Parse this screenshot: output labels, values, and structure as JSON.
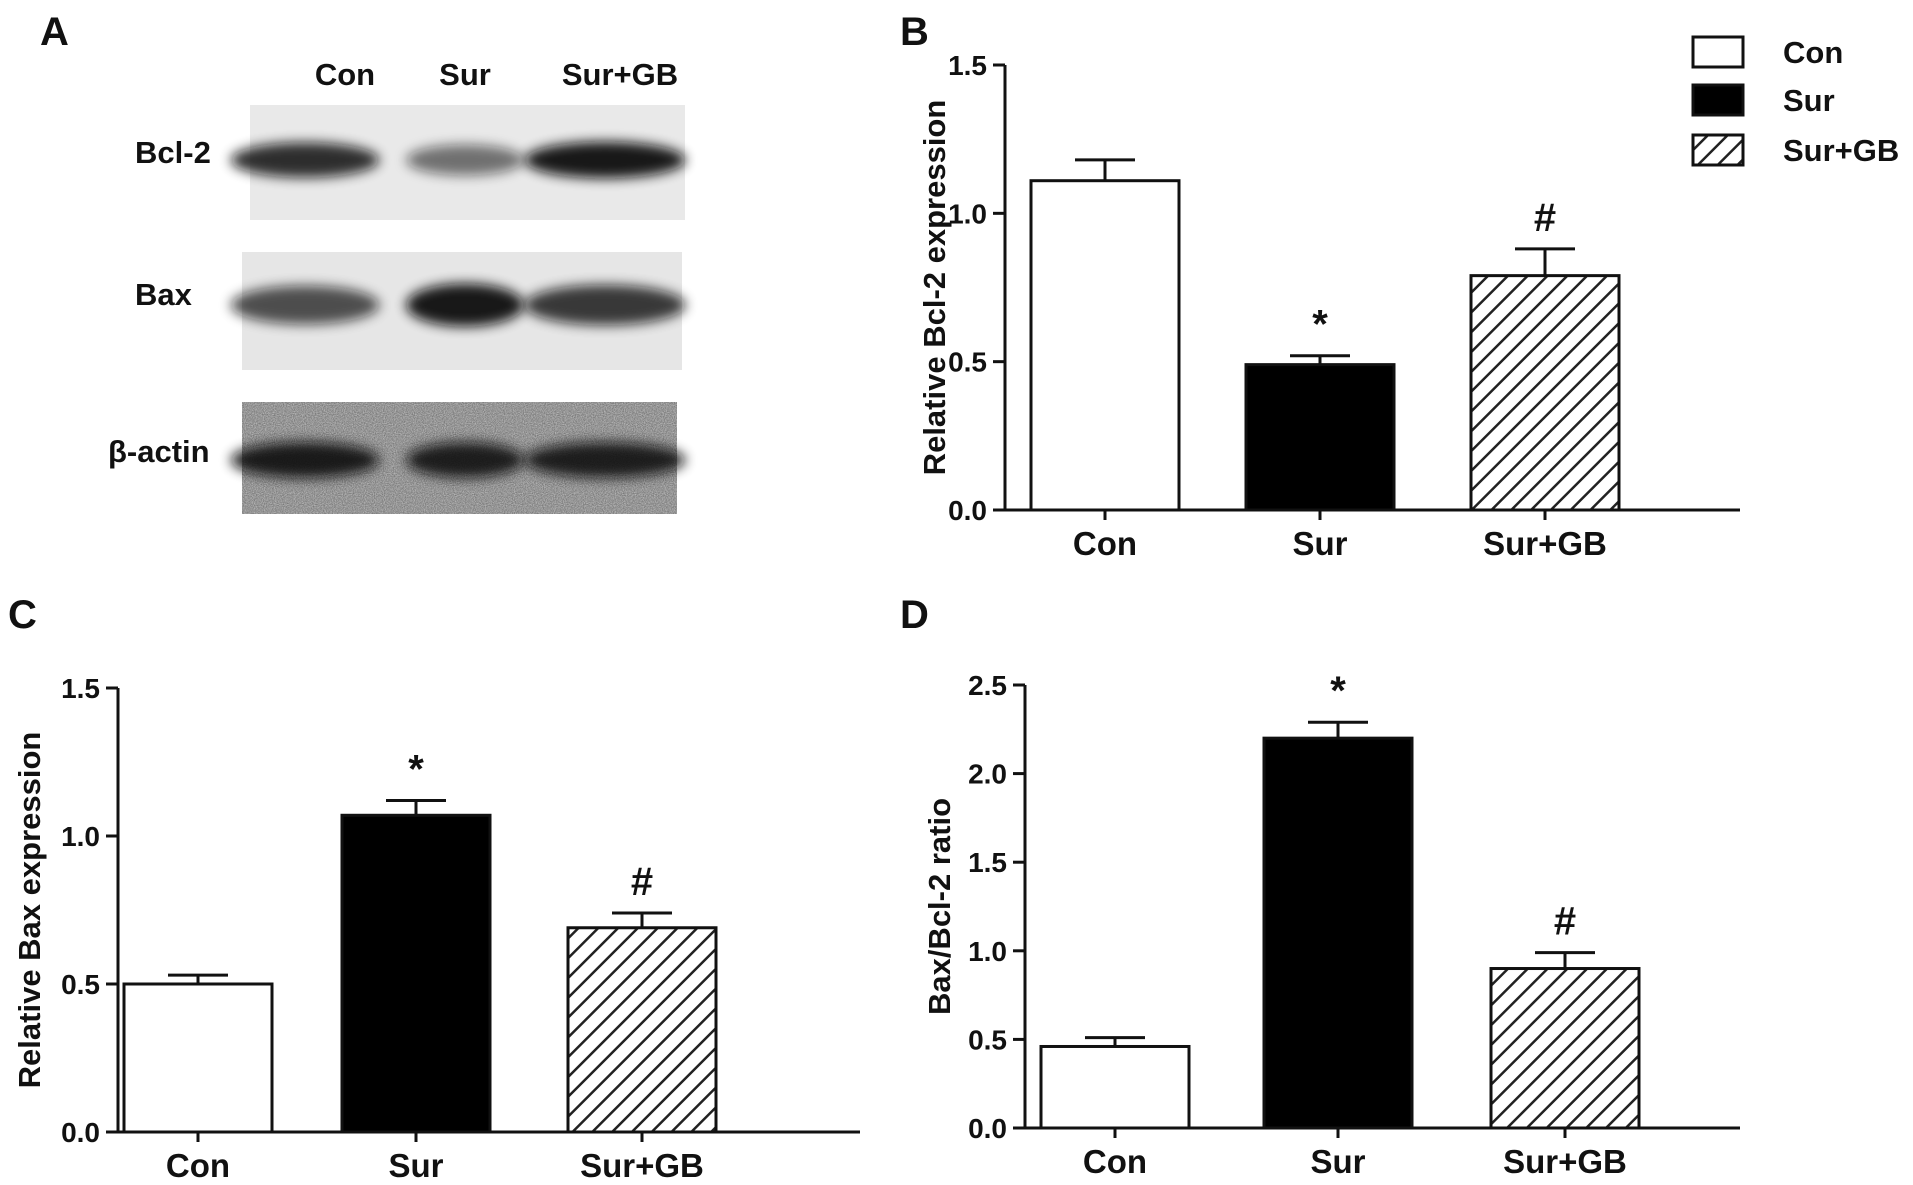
{
  "panels": {
    "a": "A",
    "b": "B",
    "c": "C",
    "d": "D"
  },
  "blot": {
    "lanes": [
      "Con",
      "Sur",
      "Sur+GB"
    ],
    "rows": [
      "Bcl-2",
      "Bax",
      "β-actin"
    ],
    "band_intensity": {
      "Bcl-2": [
        0.85,
        0.55,
        0.95
      ],
      "Bax": [
        0.7,
        0.95,
        0.8
      ],
      "β-actin": [
        0.9,
        0.88,
        0.88
      ]
    }
  },
  "legend": {
    "entries": [
      "Con",
      "Sur",
      "Sur+GB"
    ],
    "fills": [
      "white",
      "black",
      "hatched"
    ],
    "placement": "top-right"
  },
  "colors": {
    "con_fill": "#ffffff",
    "sur_fill": "#000000",
    "hatch": "#222222",
    "stroke": "#111111"
  },
  "chart_data": [
    {
      "type": "bar",
      "panel": "B",
      "categories": [
        "Con",
        "Sur",
        "Sur+GB"
      ],
      "values": [
        1.11,
        0.49,
        0.79
      ],
      "errors": [
        0.07,
        0.03,
        0.09
      ],
      "significance": [
        "",
        "*",
        "#"
      ],
      "ylabel": "Relative Bcl-2 expression",
      "ylim": [
        0,
        1.5
      ],
      "yticks": [
        0.0,
        0.5,
        1.0,
        1.5
      ],
      "ytick_labels": [
        "0.0",
        "0.5",
        "1.0",
        "1.5"
      ],
      "grid": false
    },
    {
      "type": "bar",
      "panel": "C",
      "categories": [
        "Con",
        "Sur",
        "Sur+GB"
      ],
      "values": [
        0.5,
        1.07,
        0.69
      ],
      "errors": [
        0.03,
        0.05,
        0.05
      ],
      "significance": [
        "",
        "*",
        "#"
      ],
      "ylabel": "Relative Bax expression",
      "ylim": [
        0,
        1.5
      ],
      "yticks": [
        0.0,
        0.5,
        1.0,
        1.5
      ],
      "ytick_labels": [
        "0.0",
        "0.5",
        "1.0",
        "1.5"
      ],
      "grid": false
    },
    {
      "type": "bar",
      "panel": "D",
      "categories": [
        "Con",
        "Sur",
        "Sur+GB"
      ],
      "values": [
        0.46,
        2.2,
        0.9
      ],
      "errors": [
        0.05,
        0.09,
        0.09
      ],
      "significance": [
        "",
        "*",
        "#"
      ],
      "ylabel": "Bax/Bcl-2 ratio",
      "ylim": [
        0,
        2.5
      ],
      "yticks": [
        0.0,
        0.5,
        1.0,
        1.5,
        2.0,
        2.5
      ],
      "ytick_labels": [
        "0.0",
        "0.5",
        "1.0",
        "1.5",
        "2.0",
        "2.5"
      ],
      "grid": false
    }
  ]
}
